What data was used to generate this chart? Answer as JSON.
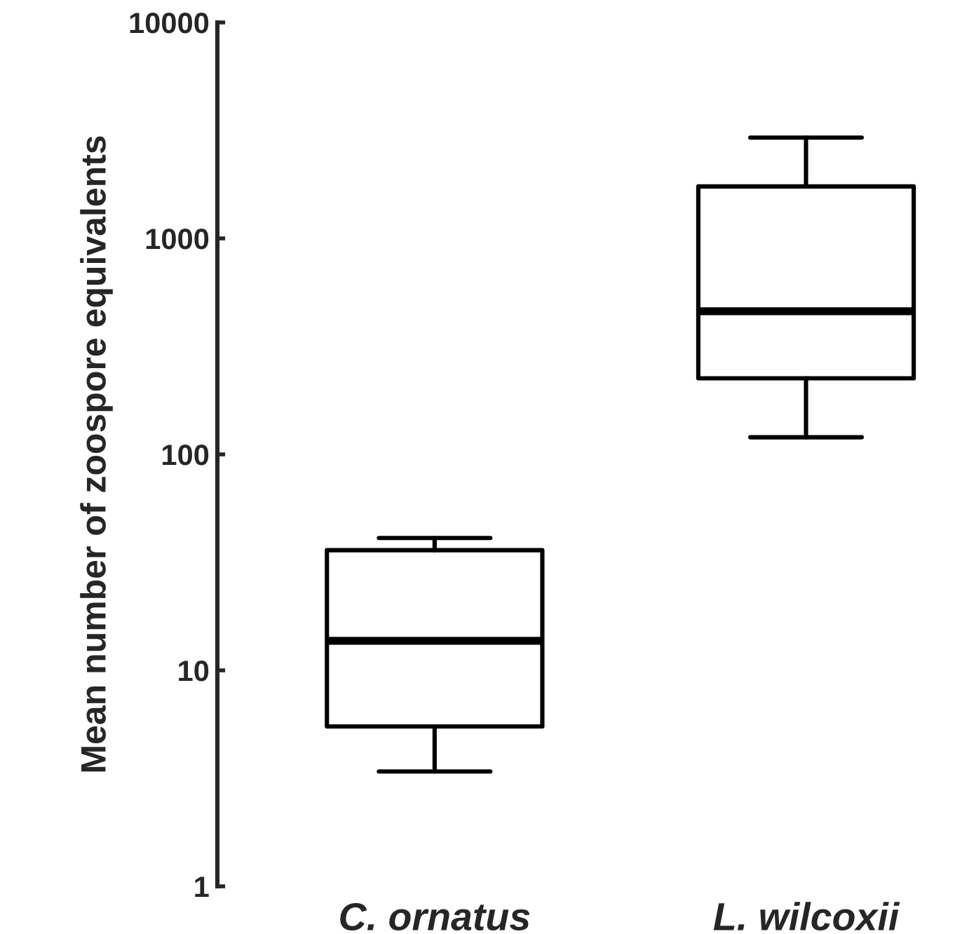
{
  "chart_data": {
    "type": "box",
    "ylabel": "Mean number of zoospore equivalents",
    "categories": [
      "C. ornatus",
      "L. wilcoxii"
    ],
    "boxes": [
      {
        "low": 3.4,
        "q1": 5.5,
        "median": 13.7,
        "q3": 36,
        "high": 41
      },
      {
        "low": 120,
        "q1": 225,
        "median": 460,
        "q3": 1740,
        "high": 2930
      }
    ],
    "log": "y",
    "ylim": [
      1,
      10000
    ],
    "yticks": [
      1,
      10,
      100,
      1000,
      10000
    ],
    "grid": false,
    "legend": false
  }
}
